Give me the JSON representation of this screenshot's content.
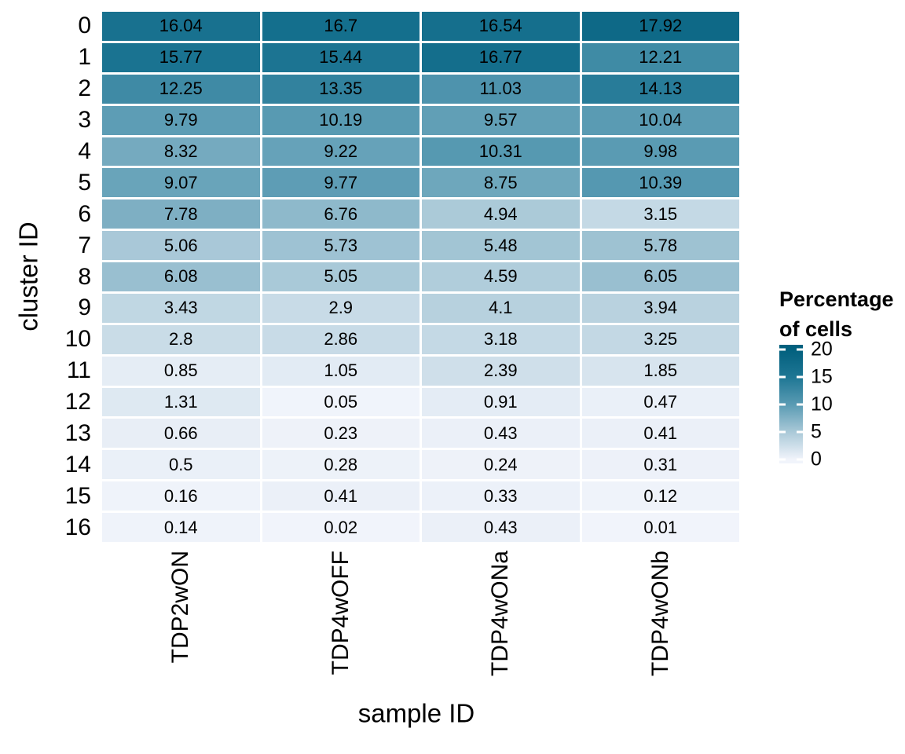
{
  "chart_data": {
    "type": "heatmap",
    "xlabel": "sample ID",
    "ylabel": "cluster ID",
    "columns": [
      "TDP2wON",
      "TDP4wOFF",
      "TDP4wONa",
      "TDP4wONb"
    ],
    "rows": [
      "0",
      "1",
      "2",
      "3",
      "4",
      "5",
      "6",
      "7",
      "8",
      "9",
      "10",
      "11",
      "12",
      "13",
      "14",
      "15",
      "16"
    ],
    "values": [
      [
        16.04,
        16.7,
        16.54,
        17.92
      ],
      [
        15.77,
        15.44,
        16.77,
        12.21
      ],
      [
        12.25,
        13.35,
        11.03,
        14.13
      ],
      [
        9.79,
        10.19,
        9.57,
        10.04
      ],
      [
        8.32,
        9.22,
        10.31,
        9.98
      ],
      [
        9.07,
        9.77,
        8.75,
        10.39
      ],
      [
        7.78,
        6.76,
        4.94,
        3.15
      ],
      [
        5.06,
        5.73,
        5.48,
        5.78
      ],
      [
        6.08,
        5.05,
        4.59,
        6.05
      ],
      [
        3.43,
        2.9,
        4.1,
        3.94
      ],
      [
        2.8,
        2.86,
        3.18,
        3.25
      ],
      [
        0.85,
        1.05,
        2.39,
        1.85
      ],
      [
        1.31,
        0.05,
        0.91,
        0.47
      ],
      [
        0.66,
        0.23,
        0.43,
        0.41
      ],
      [
        0.5,
        0.28,
        0.24,
        0.31
      ],
      [
        0.16,
        0.41,
        0.33,
        0.12
      ],
      [
        0.14,
        0.02,
        0.43,
        0.01
      ]
    ],
    "legend": {
      "title_lines": [
        "Percentage",
        "of cells"
      ],
      "ticks": [
        20,
        15,
        10,
        5,
        0
      ],
      "bar_range": [
        -0.7,
        20.9
      ]
    },
    "colorscale": {
      "vmin": 0,
      "vmax": 20,
      "stops": [
        [
          0.0,
          "#f1f4fb"
        ],
        [
          0.25,
          "#aac9d8"
        ],
        [
          0.5,
          "#5a9bb3"
        ],
        [
          0.75,
          "#1e7694"
        ],
        [
          1.0,
          "#02607e"
        ]
      ]
    },
    "cell_text_color": "#000000",
    "background": "#ffffff",
    "grid": false,
    "legend_position": "right"
  }
}
